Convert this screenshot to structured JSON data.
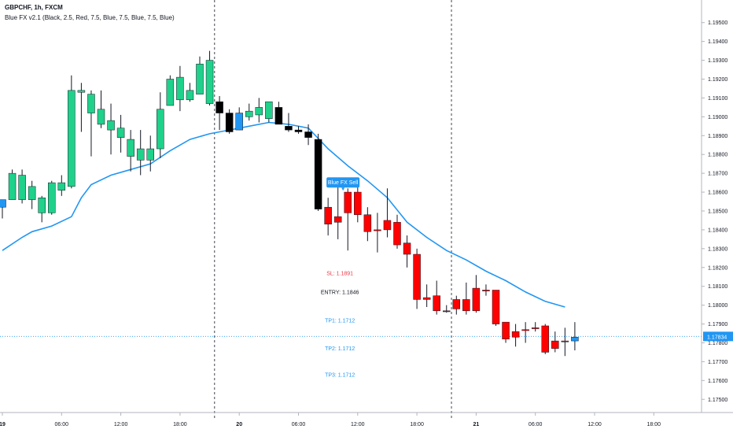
{
  "header": {
    "symbol": "GBPCHF, 1h, FXCM",
    "indicator": "Blue FX v2.1 (Black, 2.5, Red, 7.5, Blue, 7.5, Blue, 7.5, Blue)"
  },
  "colors": {
    "bull": "#1fd18a",
    "bear": "#ff0000",
    "black": "#000000",
    "blue_candle": "#2196f3",
    "ma_line": "#2196f3",
    "price_line": "#2196f3",
    "sl_text": "#f23645",
    "entry_text": "#131722",
    "tp_text": "#2196f3"
  },
  "chart_data": {
    "type": "candlestick",
    "ylim": [
      1.1743,
      1.1962
    ],
    "x_ticks": [
      {
        "label": "19",
        "bold": true,
        "bar": 0
      },
      {
        "label": "06:00",
        "bold": false,
        "bar": 6
      },
      {
        "label": "12:00",
        "bold": false,
        "bar": 12
      },
      {
        "label": "18:00",
        "bold": false,
        "bar": 18
      },
      {
        "label": "20",
        "bold": true,
        "bar": 24
      },
      {
        "label": "06:00",
        "bold": false,
        "bar": 30
      },
      {
        "label": "12:00",
        "bold": false,
        "bar": 36
      },
      {
        "label": "18:00",
        "bold": false,
        "bar": 42
      },
      {
        "label": "21",
        "bold": true,
        "bar": 48
      },
      {
        "label": "06:00",
        "bold": false,
        "bar": 54
      },
      {
        "label": "12:00",
        "bold": false,
        "bar": 60
      },
      {
        "label": "18:00",
        "bold": false,
        "bar": 66
      }
    ],
    "y_ticks": [
      "1.19500",
      "1.19400",
      "1.19300",
      "1.19200",
      "1.19100",
      "1.19000",
      "1.18900",
      "1.18800",
      "1.18700",
      "1.18600",
      "1.18500",
      "1.18400",
      "1.18300",
      "1.18200",
      "1.18100",
      "1.18000",
      "1.17900",
      "1.17800",
      "1.17700",
      "1.17600",
      "1.17500"
    ],
    "session_lines_at_bar": [
      21.5,
      45.5
    ],
    "last_price": "1.17834",
    "candles": [
      {
        "o": 1.1852,
        "h": 1.1856,
        "l": 1.1846,
        "c": 1.1856,
        "color": "blue"
      },
      {
        "o": 1.1856,
        "h": 1.1872,
        "l": 1.1856,
        "c": 1.187,
        "color": "bull"
      },
      {
        "o": 1.1856,
        "h": 1.1872,
        "l": 1.1854,
        "c": 1.1869,
        "color": "bull"
      },
      {
        "o": 1.1863,
        "h": 1.1866,
        "l": 1.1851,
        "c": 1.1856,
        "color": "bull"
      },
      {
        "o": 1.1849,
        "h": 1.1858,
        "l": 1.1844,
        "c": 1.1857,
        "color": "bull"
      },
      {
        "o": 1.1849,
        "h": 1.1866,
        "l": 1.1848,
        "c": 1.1865,
        "color": "bull"
      },
      {
        "o": 1.1865,
        "h": 1.1869,
        "l": 1.1858,
        "c": 1.1861,
        "color": "bull"
      },
      {
        "o": 1.1863,
        "h": 1.1922,
        "l": 1.1862,
        "c": 1.1914,
        "color": "bull"
      },
      {
        "o": 1.1913,
        "h": 1.1918,
        "l": 1.1892,
        "c": 1.1914,
        "color": "bull"
      },
      {
        "o": 1.1912,
        "h": 1.1914,
        "l": 1.1879,
        "c": 1.1902,
        "color": "bull"
      },
      {
        "o": 1.1904,
        "h": 1.1914,
        "l": 1.1894,
        "c": 1.1896,
        "color": "bull"
      },
      {
        "o": 1.1898,
        "h": 1.1907,
        "l": 1.188,
        "c": 1.1893,
        "color": "bull"
      },
      {
        "o": 1.1894,
        "h": 1.1901,
        "l": 1.1881,
        "c": 1.1889,
        "color": "bull"
      },
      {
        "o": 1.1888,
        "h": 1.1893,
        "l": 1.1871,
        "c": 1.1879,
        "color": "bull"
      },
      {
        "o": 1.1883,
        "h": 1.1893,
        "l": 1.1869,
        "c": 1.1877,
        "color": "bull"
      },
      {
        "o": 1.1877,
        "h": 1.189,
        "l": 1.1871,
        "c": 1.1883,
        "color": "bull"
      },
      {
        "o": 1.1883,
        "h": 1.1913,
        "l": 1.1878,
        "c": 1.1904,
        "color": "bull"
      },
      {
        "o": 1.1906,
        "h": 1.1922,
        "l": 1.1906,
        "c": 1.192,
        "color": "bull"
      },
      {
        "o": 1.1921,
        "h": 1.1927,
        "l": 1.1903,
        "c": 1.1909,
        "color": "bull"
      },
      {
        "o": 1.1909,
        "h": 1.1918,
        "l": 1.1908,
        "c": 1.1914,
        "color": "bull"
      },
      {
        "o": 1.1912,
        "h": 1.1932,
        "l": 1.1912,
        "c": 1.1928,
        "color": "bull"
      },
      {
        "o": 1.193,
        "h": 1.1935,
        "l": 1.1906,
        "c": 1.1907,
        "color": "bull"
      },
      {
        "o": 1.1908,
        "h": 1.1911,
        "l": 1.1893,
        "c": 1.1902,
        "color": "black"
      },
      {
        "o": 1.1902,
        "h": 1.1904,
        "l": 1.1891,
        "c": 1.1892,
        "color": "black"
      },
      {
        "o": 1.1893,
        "h": 1.1905,
        "l": 1.1893,
        "c": 1.1902,
        "color": "blue"
      },
      {
        "o": 1.19,
        "h": 1.1907,
        "l": 1.1898,
        "c": 1.1903,
        "color": "bull"
      },
      {
        "o": 1.1901,
        "h": 1.191,
        "l": 1.1897,
        "c": 1.1905,
        "color": "bull"
      },
      {
        "o": 1.1899,
        "h": 1.1908,
        "l": 1.1897,
        "c": 1.1908,
        "color": "bull"
      },
      {
        "o": 1.1905,
        "h": 1.1908,
        "l": 1.1897,
        "c": 1.1896,
        "color": "black"
      },
      {
        "o": 1.1895,
        "h": 1.1902,
        "l": 1.1892,
        "c": 1.1893,
        "color": "black"
      },
      {
        "o": 1.1893,
        "h": 1.1895,
        "l": 1.1891,
        "c": 1.1892,
        "color": "black"
      },
      {
        "o": 1.1892,
        "h": 1.1896,
        "l": 1.1885,
        "c": 1.1889,
        "color": "black"
      },
      {
        "o": 1.1888,
        "h": 1.1891,
        "l": 1.185,
        "c": 1.1851,
        "color": "black"
      },
      {
        "o": 1.1852,
        "h": 1.1857,
        "l": 1.1837,
        "c": 1.1843,
        "color": "red"
      },
      {
        "o": 1.1847,
        "h": 1.1864,
        "l": 1.1835,
        "c": 1.1844,
        "color": "red"
      },
      {
        "o": 1.1849,
        "h": 1.1862,
        "l": 1.1829,
        "c": 1.186,
        "color": "red"
      },
      {
        "o": 1.186,
        "h": 1.1865,
        "l": 1.1844,
        "c": 1.1848,
        "color": "red"
      },
      {
        "o": 1.1848,
        "h": 1.1852,
        "l": 1.1834,
        "c": 1.1839,
        "color": "red"
      },
      {
        "o": 1.184,
        "h": 1.1849,
        "l": 1.1828,
        "c": 1.184,
        "color": "red"
      },
      {
        "o": 1.1845,
        "h": 1.1862,
        "l": 1.1836,
        "c": 1.184,
        "color": "red"
      },
      {
        "o": 1.1844,
        "h": 1.1848,
        "l": 1.183,
        "c": 1.1832,
        "color": "red"
      },
      {
        "o": 1.1833,
        "h": 1.1837,
        "l": 1.182,
        "c": 1.1827,
        "color": "red"
      },
      {
        "o": 1.1827,
        "h": 1.183,
        "l": 1.1798,
        "c": 1.1803,
        "color": "red"
      },
      {
        "o": 1.1804,
        "h": 1.1811,
        "l": 1.1799,
        "c": 1.1803,
        "color": "red"
      },
      {
        "o": 1.1805,
        "h": 1.1813,
        "l": 1.1795,
        "c": 1.1797,
        "color": "red"
      },
      {
        "o": 1.1797,
        "h": 1.18,
        "l": 1.1796,
        "c": 1.1797,
        "color": "red"
      },
      {
        "o": 1.1803,
        "h": 1.1805,
        "l": 1.1795,
        "c": 1.1798,
        "color": "red"
      },
      {
        "o": 1.1803,
        "h": 1.1812,
        "l": 1.1795,
        "c": 1.1797,
        "color": "red"
      },
      {
        "o": 1.1809,
        "h": 1.1816,
        "l": 1.1796,
        "c": 1.1797,
        "color": "red"
      },
      {
        "o": 1.1808,
        "h": 1.1811,
        "l": 1.1805,
        "c": 1.1808,
        "color": "red"
      },
      {
        "o": 1.1808,
        "h": 1.1808,
        "l": 1.1789,
        "c": 1.179,
        "color": "red"
      },
      {
        "o": 1.1791,
        "h": 1.1791,
        "l": 1.178,
        "c": 1.1782,
        "color": "red"
      },
      {
        "o": 1.1786,
        "h": 1.179,
        "l": 1.1778,
        "c": 1.1783,
        "color": "red"
      },
      {
        "o": 1.1787,
        "h": 1.1791,
        "l": 1.178,
        "c": 1.1787,
        "color": "red"
      },
      {
        "o": 1.1788,
        "h": 1.1791,
        "l": 1.1786,
        "c": 1.1788,
        "color": "red"
      },
      {
        "o": 1.1789,
        "h": 1.179,
        "l": 1.1774,
        "c": 1.1775,
        "color": "red"
      },
      {
        "o": 1.1781,
        "h": 1.1786,
        "l": 1.1775,
        "c": 1.1777,
        "color": "red"
      },
      {
        "o": 1.1781,
        "h": 1.1788,
        "l": 1.1773,
        "c": 1.1781,
        "color": "red"
      },
      {
        "o": 1.1781,
        "h": 1.1791,
        "l": 1.1776,
        "c": 1.1783,
        "color": "blue"
      }
    ],
    "ma_line": [
      {
        "bar": 0,
        "y": 1.1829
      },
      {
        "bar": 2,
        "y": 1.1836
      },
      {
        "bar": 3,
        "y": 1.1839
      },
      {
        "bar": 5,
        "y": 1.1842
      },
      {
        "bar": 7,
        "y": 1.1847
      },
      {
        "bar": 8,
        "y": 1.1857
      },
      {
        "bar": 9,
        "y": 1.1864
      },
      {
        "bar": 11,
        "y": 1.1869
      },
      {
        "bar": 13,
        "y": 1.1872
      },
      {
        "bar": 15,
        "y": 1.1875
      },
      {
        "bar": 17,
        "y": 1.1882
      },
      {
        "bar": 19,
        "y": 1.1888
      },
      {
        "bar": 21,
        "y": 1.1891
      },
      {
        "bar": 23,
        "y": 1.1893
      },
      {
        "bar": 25,
        "y": 1.1895
      },
      {
        "bar": 27,
        "y": 1.1897
      },
      {
        "bar": 29,
        "y": 1.1896
      },
      {
        "bar": 31,
        "y": 1.1894
      },
      {
        "bar": 33,
        "y": 1.1883
      },
      {
        "bar": 35,
        "y": 1.1874
      },
      {
        "bar": 37,
        "y": 1.1866
      },
      {
        "bar": 39,
        "y": 1.1857
      },
      {
        "bar": 41,
        "y": 1.1844
      },
      {
        "bar": 43,
        "y": 1.1836
      },
      {
        "bar": 45,
        "y": 1.1829
      },
      {
        "bar": 47,
        "y": 1.1824
      },
      {
        "bar": 49,
        "y": 1.1818
      },
      {
        "bar": 51,
        "y": 1.1813
      },
      {
        "bar": 53,
        "y": 1.1807
      },
      {
        "bar": 55,
        "y": 1.1802
      },
      {
        "bar": 57,
        "y": 1.1799
      }
    ],
    "annotations": {
      "signal_label": "Blue FX Sell",
      "signal_bar": 33,
      "sl": "SL: 1.1891",
      "entry": "ENTRY: 1.1846",
      "tp1": "TP1: 1.1712",
      "tp2": "TP2: 1.1712",
      "tp3": "TP3: 1.1712",
      "text_bar": 33,
      "sl_level": 1.1817,
      "entry_level": 1.1807,
      "tp1_level": 1.1792,
      "tp2_level": 1.1777,
      "tp3_level": 1.1763
    }
  }
}
